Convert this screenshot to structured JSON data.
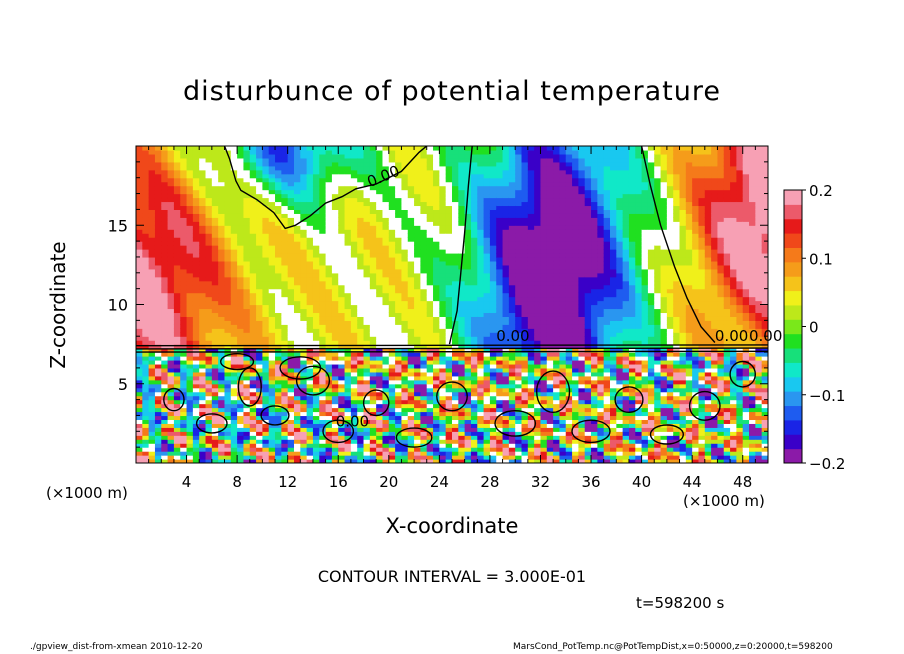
{
  "chart_data": {
    "type": "heatmap",
    "title": "disturbunce of potential temperature",
    "xlabel": "X-coordinate",
    "ylabel": "Z-coordinate",
    "x_unit": "(×1000 m)",
    "xlim": [
      0,
      50
    ],
    "ylim": [
      0,
      20
    ],
    "x_ticks": [
      4,
      8,
      12,
      16,
      20,
      24,
      28,
      32,
      36,
      40,
      44,
      48
    ],
    "y_ticks": [
      5,
      10,
      15
    ],
    "colorbar": {
      "range": [
        -0.2,
        0.2
      ],
      "ticks": [
        {
          "value": 0.2,
          "label": "0.2"
        },
        {
          "value": 0.1,
          "label": "0.1"
        },
        {
          "value": 0,
          "label": "0"
        },
        {
          "value": -0.1,
          "label": "−0.1"
        },
        {
          "value": -0.2,
          "label": "−0.2"
        }
      ],
      "colors": [
        "#8b1aa8",
        "#3a00c8",
        "#1a24e6",
        "#1e5cf0",
        "#2a96f0",
        "#19c8f0",
        "#10e8c8",
        "#17e07a",
        "#20e020",
        "#7ae81a",
        "#bde81a",
        "#f0f01a",
        "#f5c31a",
        "#f59c1a",
        "#f57a1a",
        "#f0481a",
        "#e61a1a",
        "#ec5a6a",
        "#f7a0b4"
      ]
    },
    "contour_labels": [
      "0.00",
      "0.00",
      "0.00",
      "0.00",
      "0.00"
    ],
    "contour_interval": "CONTOUR INTERVAL = 3.000E-01",
    "time": "t=598200 s"
  },
  "footer": {
    "left": "./gpview_dist-from-xmean   2010-12-20",
    "right": "MarsCond_PotTemp.nc@PotTempDist,x=0:50000,z=0:20000,t=598200"
  }
}
